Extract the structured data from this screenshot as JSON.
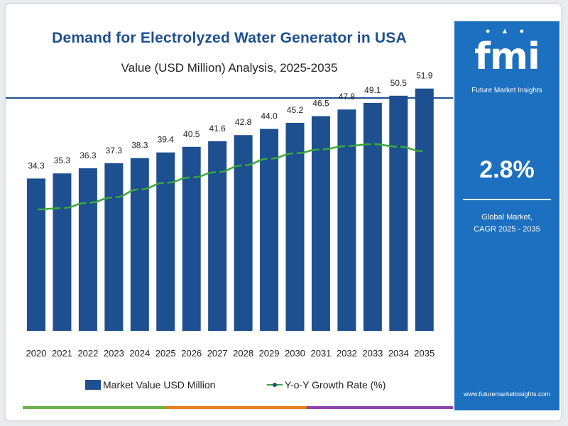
{
  "header": {
    "title": "Demand for Electrolyzed Water Generator in USA",
    "subtitle": "Value (USD Million) Analysis, 2025-2035"
  },
  "sidebar": {
    "logo_text": "fmi",
    "logo_subtitle": "Future Market Insights",
    "cagr_value": "2.8%",
    "cagr_line1": "Global Market,",
    "cagr_line2": "CAGR 2025 - 2035",
    "website": "www.futuremarketinsights.com"
  },
  "legend": {
    "bar_label": "Market Value USD Million",
    "line_label": "Y-o-Y Growth Rate (%)"
  },
  "colors": {
    "bar": "#1d4f91",
    "line": "#3aa83a",
    "marker": "#1d4f91",
    "sidebar": "#1d6fbf",
    "title": "#1d4f91"
  },
  "chart_data": {
    "type": "bar",
    "title": "Demand for Electrolyzed Water Generator in USA",
    "subtitle": "Value (USD Million) Analysis, 2025-2035",
    "categories": [
      "2020",
      "2021",
      "2022",
      "2023",
      "2024",
      "2025",
      "2026",
      "2027",
      "2028",
      "2029",
      "2030",
      "2031",
      "2032",
      "2033",
      "2034",
      "2035"
    ],
    "series": [
      {
        "name": "Market Value USD Million",
        "type": "bar",
        "values": [
          34.3,
          35.3,
          36.3,
          37.3,
          38.3,
          39.4,
          40.5,
          41.6,
          42.8,
          44.0,
          45.2,
          46.5,
          47.8,
          49.1,
          50.5,
          51.9
        ]
      },
      {
        "name": "Y-o-Y Growth Rate (%)",
        "type": "line",
        "values": [
          2.3,
          2.32,
          2.4,
          2.48,
          2.6,
          2.7,
          2.78,
          2.86,
          2.96,
          3.06,
          3.14,
          3.2,
          3.25,
          3.28,
          3.24,
          3.17
        ]
      }
    ],
    "grid": false,
    "legend_position": "bottom"
  }
}
